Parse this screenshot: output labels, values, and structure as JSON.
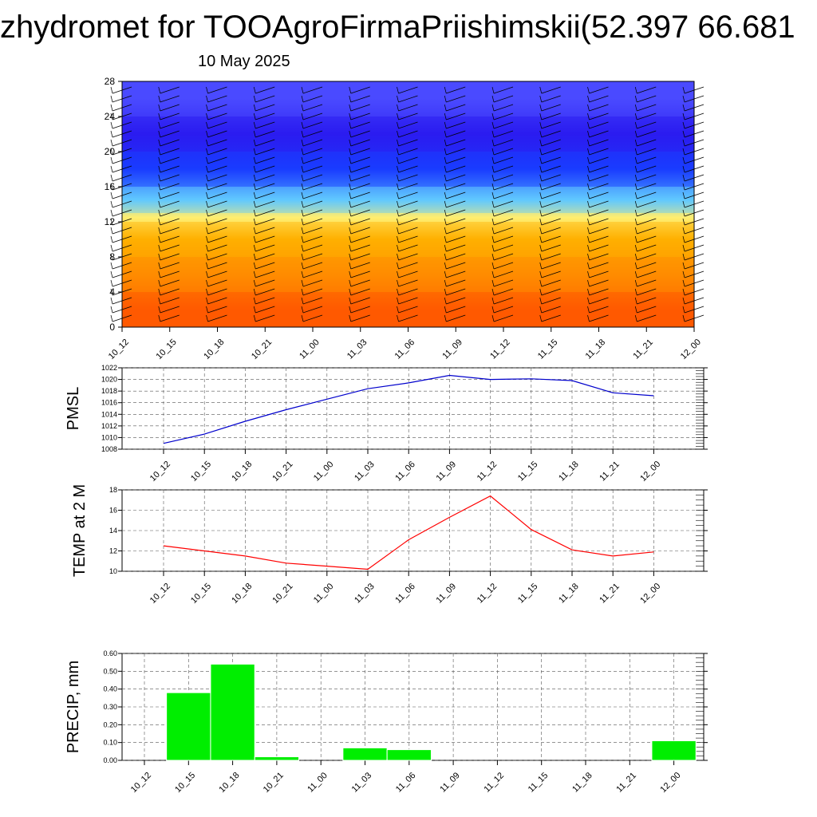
{
  "header": {
    "title": "zhydromet for TOOAgroFirmaPriishimskii(52.397 66.681",
    "subtitle": "10 May 2025"
  },
  "time_labels": [
    "10_12",
    "10_15",
    "10_18",
    "10_21",
    "11_00",
    "11_03",
    "11_06",
    "11_09",
    "11_12",
    "11_15",
    "11_18",
    "11_21",
    "12_00"
  ],
  "colors": {
    "pmsl_line": "#0000cc",
    "temp_line": "#ff0000",
    "precip_bar": "#00ee00",
    "grid": "#555555"
  },
  "chart_data": [
    {
      "type": "heatmap",
      "title": "",
      "x_categories": [
        "10_12",
        "10_15",
        "10_18",
        "10_21",
        "11_00",
        "11_03",
        "11_06",
        "11_09",
        "11_12",
        "11_15",
        "11_18",
        "11_21",
        "12_00"
      ],
      "y_ticks": [
        "0",
        "4",
        "8",
        "12",
        "16",
        "20",
        "24",
        "28"
      ],
      "ylim": [
        0,
        28
      ],
      "grid": false,
      "color_bands": [
        {
          "from": 0,
          "to": 4,
          "color": "#ff5a00"
        },
        {
          "from": 4,
          "to": 8,
          "color": "#ff8c00"
        },
        {
          "from": 8,
          "to": 12,
          "color": "#ffb000"
        },
        {
          "from": 12,
          "to": 13,
          "color": "#ffee70"
        },
        {
          "from": 13,
          "to": 16,
          "color": "#60c8ff"
        },
        {
          "from": 16,
          "to": 20,
          "color": "#1a3cff"
        },
        {
          "from": 20,
          "to": 24,
          "color": "#2b1cf0"
        },
        {
          "from": 24,
          "to": 28,
          "color": "#4a4aff"
        }
      ]
    },
    {
      "type": "line",
      "ylabel": "PMSL",
      "xlabel": "",
      "categories": [
        "10_12",
        "10_15",
        "10_18",
        "10_21",
        "11_00",
        "11_03",
        "11_06",
        "11_09",
        "11_12",
        "11_15",
        "11_18",
        "11_21",
        "12_00"
      ],
      "y_ticks": [
        "1008",
        "1010",
        "1012",
        "1014",
        "1016",
        "1018",
        "1020",
        "1022"
      ],
      "ylim": [
        1008,
        1022
      ],
      "grid": true,
      "series": [
        {
          "values": [
            1009.0,
            1010.6,
            1012.8,
            1014.8,
            1016.6,
            1018.4,
            1019.4,
            1020.7,
            1020.0,
            1020.1,
            1019.8,
            1017.7,
            1017.2
          ]
        }
      ]
    },
    {
      "type": "line",
      "ylabel": "TEMP at 2 M",
      "xlabel": "",
      "categories": [
        "10_12",
        "10_15",
        "10_18",
        "10_21",
        "11_00",
        "11_03",
        "11_06",
        "11_09",
        "11_12",
        "11_15",
        "11_18",
        "11_21",
        "12_00"
      ],
      "y_ticks": [
        "10",
        "12",
        "14",
        "16",
        "18"
      ],
      "ylim": [
        10,
        18
      ],
      "grid": true,
      "series": [
        {
          "values": [
            12.5,
            12.0,
            11.5,
            10.8,
            10.5,
            10.2,
            13.1,
            15.3,
            17.4,
            14.1,
            12.1,
            11.5,
            11.9
          ]
        }
      ]
    },
    {
      "type": "bar",
      "ylabel": "PRECIP, mm",
      "xlabel": "",
      "categories": [
        "10_12",
        "10_15",
        "10_18",
        "10_21",
        "11_00",
        "11_03",
        "11_06",
        "11_09",
        "11_12",
        "11_15",
        "11_18",
        "11_21",
        "12_00"
      ],
      "y_ticks": [
        "0.00",
        "0.10",
        "0.20",
        "0.30",
        "0.40",
        "0.50",
        "0.60"
      ],
      "ylim": [
        0,
        0.6
      ],
      "grid": true,
      "series": [
        {
          "values": [
            0,
            0.38,
            0.54,
            0.02,
            0,
            0.07,
            0.06,
            0,
            0,
            0,
            0,
            0,
            0.11
          ]
        }
      ]
    }
  ]
}
